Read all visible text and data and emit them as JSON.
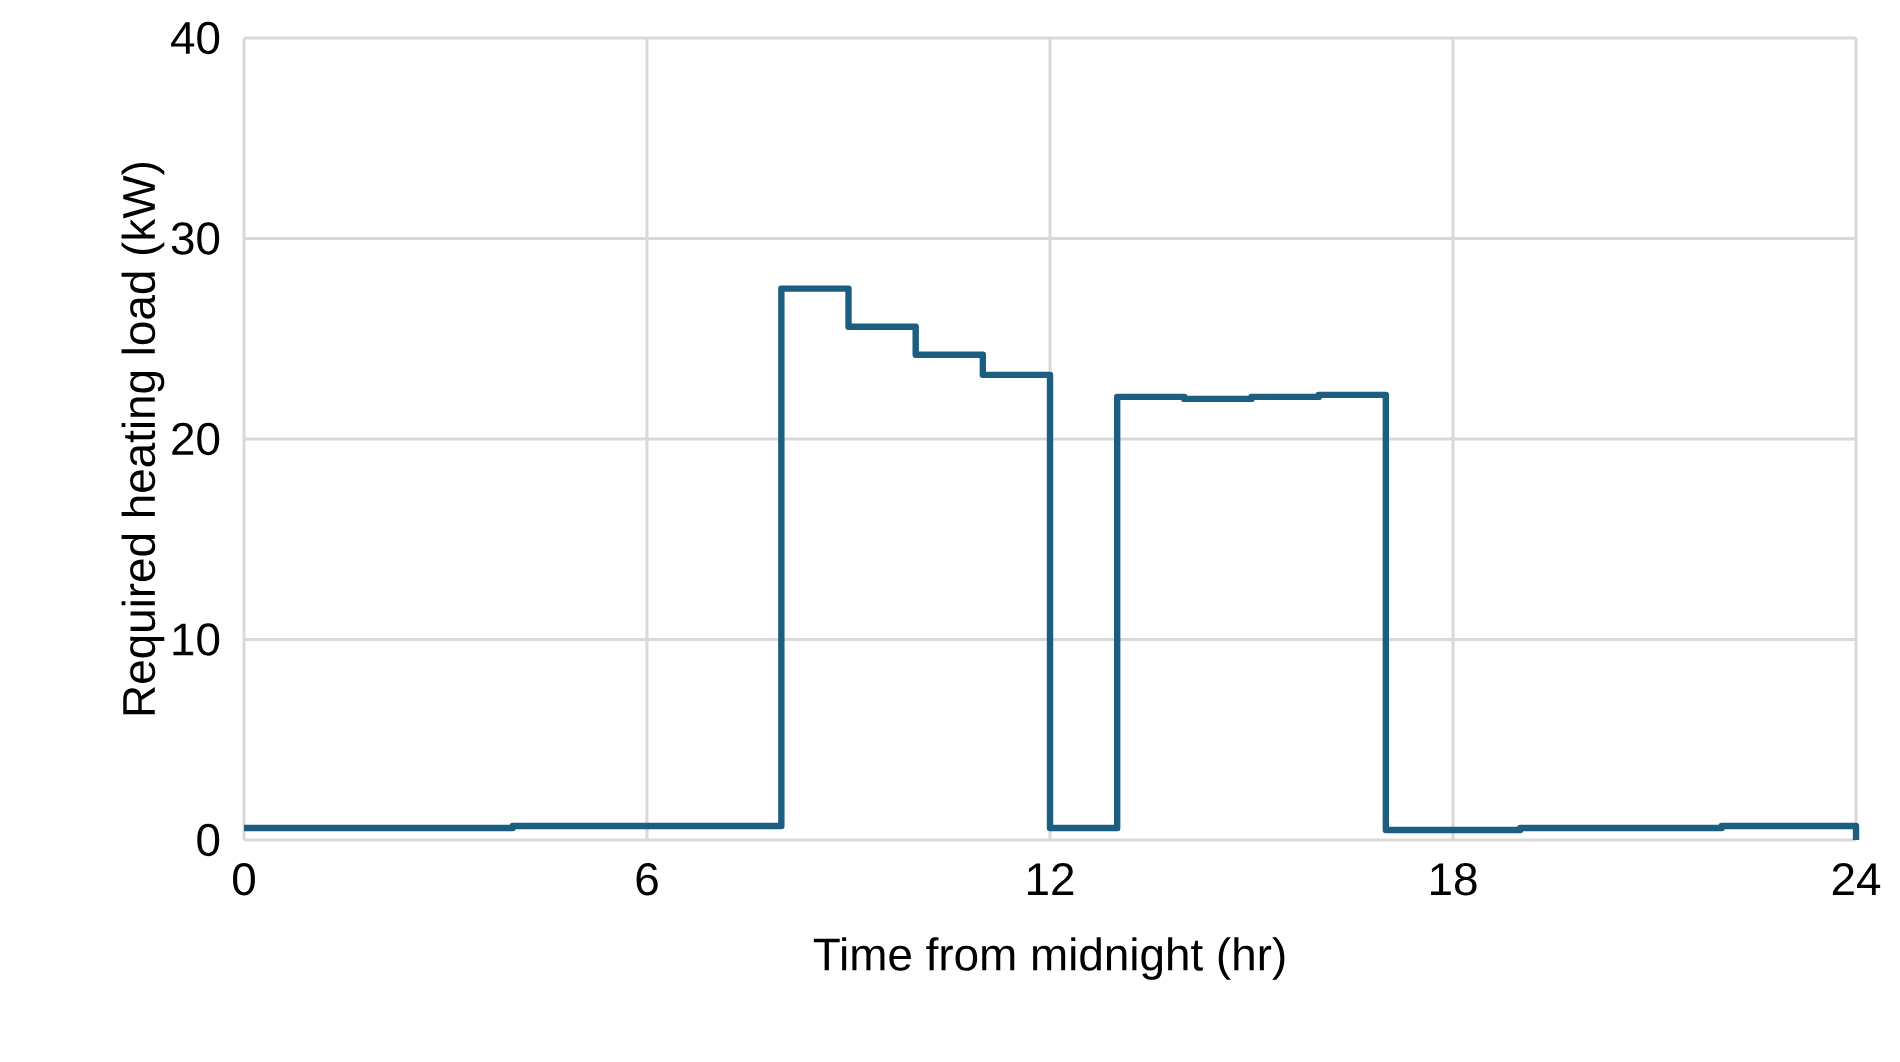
{
  "chart_data": {
    "type": "step",
    "xlabel": "Time from midnight (hr)",
    "ylabel": "Required heating load (kW)",
    "x": [
      0,
      1,
      2,
      3,
      4,
      5,
      6,
      7,
      8,
      9,
      10,
      11,
      12,
      13,
      14,
      15,
      16,
      17,
      18,
      19,
      20,
      21,
      22,
      23,
      24
    ],
    "values": [
      0.6,
      0.6,
      0.6,
      0.6,
      0.7,
      0.7,
      0.7,
      0.7,
      27.5,
      25.6,
      24.2,
      23.2,
      0.6,
      22.1,
      22.0,
      22.1,
      22.2,
      0.5,
      0.5,
      0.6,
      0.6,
      0.6,
      0.7,
      0.7,
      0
    ],
    "color": "#1b5e80",
    "xlim": [
      0,
      24
    ],
    "ylim": [
      0,
      40
    ],
    "xticks": [
      0,
      6,
      12,
      18,
      24
    ],
    "yticks": [
      0,
      10,
      20,
      30,
      40
    ],
    "grid": true
  }
}
